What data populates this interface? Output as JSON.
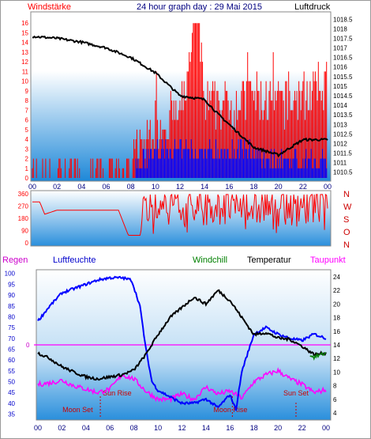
{
  "header": {
    "left_title": "Windstärke",
    "center_title": "24 hour graph day : 29 Mai 2015",
    "right_title": "Luftdruck"
  },
  "colors": {
    "red": "#ff0000",
    "blue": "#0000ff",
    "black": "#000000",
    "magenta": "#ff00ff",
    "green": "#008000",
    "navy": "#000080",
    "sky_top": "#ffffff",
    "sky_bottom": "#1e88d8"
  },
  "chart_data": [
    {
      "type": "bar",
      "id": "wind_pressure",
      "left_axis_label": "Windstärke",
      "right_axis_label": "Luftdruck",
      "x_ticks": [
        "00",
        "02",
        "04",
        "06",
        "08",
        "10",
        "12",
        "14",
        "16",
        "18",
        "20",
        "22",
        "00"
      ],
      "left_ticks": [
        0,
        1,
        2,
        3,
        4,
        5,
        6,
        7,
        8,
        9,
        10,
        11,
        12,
        13,
        14,
        15,
        16
      ],
      "ylim_left": [
        0,
        17
      ],
      "right_ticks": [
        "1018.5",
        "1018",
        "1017.5",
        "1017",
        "1016.5",
        "1016",
        "1015.5",
        "1015",
        "1014.5",
        "1014",
        "1013.5",
        "1013",
        "1012.5",
        "1012",
        "1011.5",
        "1011",
        "1010.5"
      ],
      "ylim_right": [
        1010.2,
        1018.8
      ],
      "series": [
        {
          "name": "Luftdruck",
          "color": "#000000",
          "x": [
            0,
            2,
            4,
            6,
            8,
            10,
            12,
            14,
            15,
            16,
            18,
            20,
            22,
            24
          ],
          "values": [
            1017.6,
            1017.5,
            1017.3,
            1017.0,
            1016.5,
            1015.7,
            1014.5,
            1014.3,
            1013.6,
            1013.0,
            1011.8,
            1011.4,
            1012.2,
            1012.2
          ]
        },
        {
          "name": "Windstärke",
          "color": "#ff0000",
          "x": [
            0,
            2,
            4,
            6,
            8,
            10,
            12,
            13.5,
            14,
            16,
            18,
            20,
            22,
            24
          ],
          "values": [
            1,
            1,
            1,
            1,
            1,
            5,
            6,
            16,
            7,
            7,
            8,
            7,
            8,
            9
          ]
        },
        {
          "name": "Wind",
          "color": "#0000ff",
          "x": [
            0,
            8,
            9,
            10,
            12,
            14,
            16,
            18,
            20,
            22,
            24
          ],
          "values": [
            0,
            0,
            2,
            3,
            3,
            3,
            3,
            3,
            2,
            2,
            2
          ]
        }
      ]
    },
    {
      "type": "line",
      "id": "wind_direction",
      "left_ticks": [
        0,
        90,
        180,
        270,
        360
      ],
      "ylim": [
        0,
        360
      ],
      "right_labels": [
        "N",
        "W",
        "S",
        "O",
        "N"
      ],
      "series": [
        {
          "name": "Windrichtung",
          "color": "#ff0000",
          "x": [
            0,
            0.6,
            1,
            2,
            7,
            7.8,
            8.8,
            9,
            24
          ],
          "values": [
            300,
            300,
            210,
            240,
            240,
            55,
            55,
            270,
            270
          ]
        }
      ]
    },
    {
      "type": "line",
      "id": "humidity_temperature",
      "labels": {
        "regen": "Regen",
        "luftfeuchte": "Luftfeuchte",
        "windchill": "Windchill",
        "temperatur": "Temperatur",
        "taupunkt": "Taupunkt"
      },
      "x_ticks": [
        "00",
        "02",
        "04",
        "06",
        "08",
        "10",
        "12",
        "14",
        "16",
        "18",
        "20",
        "22",
        "00"
      ],
      "left_ticks": [
        35,
        40,
        45,
        50,
        55,
        60,
        65,
        70,
        75,
        80,
        85,
        90,
        95,
        100
      ],
      "ylim_left": [
        33,
        101
      ],
      "right_ticks": [
        4,
        6,
        8,
        10,
        12,
        14,
        16,
        18,
        20,
        22,
        24
      ],
      "ylim_right": [
        3.2,
        24.8
      ],
      "rain_level_label": "0",
      "rain_level_value": 14,
      "annotations": [
        {
          "text": "Moon Set",
          "hour": 5.2,
          "color": "#cc0000"
        },
        {
          "text": "Sun Rise",
          "hour": 5.4,
          "color": "#cc0000"
        },
        {
          "text": "Moon Rise",
          "hour": 16.2,
          "color": "#cc0000"
        },
        {
          "text": "Sun Set",
          "hour": 21.5,
          "color": "#cc0000"
        }
      ],
      "series": [
        {
          "name": "Luftfeuchte",
          "color": "#0000ff",
          "axis": "left",
          "x": [
            0,
            1,
            2,
            3,
            4,
            5,
            6,
            7,
            7.8,
            8.5,
            9,
            9.5,
            10,
            11,
            12,
            13,
            14,
            15,
            16,
            16.5,
            17,
            18,
            19,
            20,
            21,
            22,
            23,
            24
          ],
          "values": [
            78,
            85,
            91,
            93,
            95,
            97,
            98,
            98,
            97,
            85,
            65,
            50,
            46,
            43,
            40,
            40,
            42,
            38,
            44,
            37,
            55,
            72,
            75,
            72,
            70,
            69,
            72,
            70
          ]
        },
        {
          "name": "Temperatur",
          "color": "#000000",
          "axis": "right",
          "x": [
            0,
            1,
            2,
            3,
            4,
            5,
            6,
            7,
            8,
            9,
            10,
            11,
            12,
            13,
            14,
            15,
            16,
            17,
            18,
            19,
            20,
            21,
            22,
            23,
            24
          ],
          "values": [
            12.8,
            12.0,
            10.8,
            10.0,
            9.3,
            9.0,
            9.3,
            9.6,
            10.3,
            12.6,
            15.5,
            18.0,
            19.5,
            21.0,
            20.0,
            22.0,
            20.5,
            18.0,
            15.5,
            15.8,
            15.0,
            14.8,
            13.8,
            12.6,
            12.8
          ]
        },
        {
          "name": "Windchill",
          "color": "#008000",
          "axis": "right",
          "x": [
            22.6,
            23,
            23.5,
            24
          ],
          "values": [
            12.6,
            12.2,
            12.5,
            12.8
          ]
        },
        {
          "name": "Taupunkt",
          "color": "#ff00ff",
          "axis": "right",
          "x": [
            0,
            1,
            2,
            3,
            4,
            5,
            6,
            7,
            8,
            9,
            10,
            11,
            12,
            13,
            14,
            15,
            16,
            17,
            18,
            19,
            20,
            21,
            22,
            23,
            24
          ],
          "values": [
            8.2,
            8.4,
            8.8,
            8.0,
            7.5,
            7.0,
            7.5,
            9.6,
            9.0,
            7.2,
            6.0,
            6.0,
            6.8,
            6.0,
            7.8,
            6.8,
            7.2,
            6.2,
            8.6,
            9.6,
            10.2,
            9.0,
            8.2,
            7.0,
            7.4
          ]
        }
      ]
    }
  ]
}
